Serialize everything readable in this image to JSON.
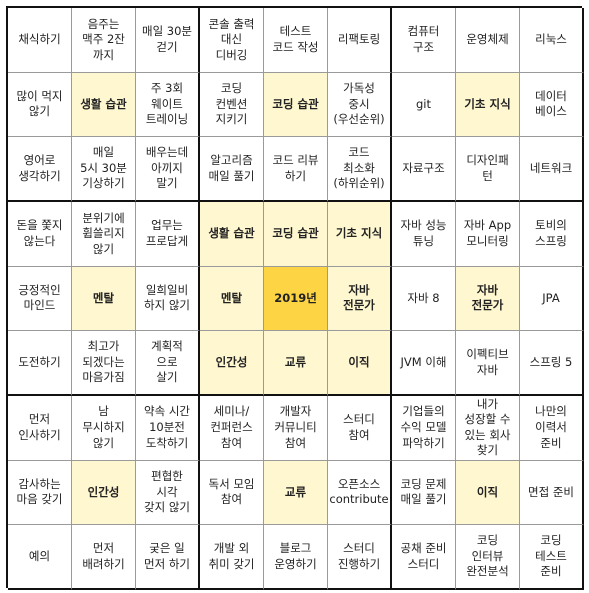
{
  "board": {
    "rows": [
      [
        "채식하기",
        "음주는\n맥주 2잔\n까지",
        "매일 30분\n걷기",
        "콘솔 출력\n대신\n디버깅",
        "테스트\n코드 작성",
        "리팩토링",
        "컴퓨터\n구조",
        "운영체제",
        "리눅스"
      ],
      [
        "많이 먹지\n않기",
        "생활 습관",
        "주 3회\n웨이트\n트레이닝",
        "코딩\n컨벤션\n지키기",
        "코딩 습관",
        "가독성\n중시\n(우선순위)",
        "git",
        "기초 지식",
        "데이터\n베이스"
      ],
      [
        "영어로\n생각하기",
        "매일\n5시 30분\n기상하기",
        "배우는데\n아끼지\n말기",
        "알고리즘\n매일 풀기",
        "코드 리뷰\n하기",
        "코드\n최소화\n(하위순위)",
        "자료구조",
        "디자인패\n턴",
        "네트워크"
      ],
      [
        "돈을 쫓지\n않는다",
        "분위기에\n휩쓸리지\n않기",
        "업무는\n프로답게",
        "생활 습관",
        "코딩 습관",
        "기초 지식",
        "자바 성능\n튜닝",
        "자바 App\n모니터링",
        "토비의\n스프링"
      ],
      [
        "긍정적인\n마인드",
        "멘탈",
        "일희일비\n하지 않기",
        "멘탈",
        "2019년",
        "자바\n전문가",
        "자바 8",
        "자바\n전문가",
        "JPA"
      ],
      [
        "도전하기",
        "최고가\n되겠다는\n마음가짐",
        "계획적\n으로\n살기",
        "인간성",
        "교류",
        "이직",
        "JVM 이해",
        "이펙티브\n자바",
        "스프링 5"
      ],
      [
        "먼저\n인사하기",
        "남\n무시하지\n않기",
        "약속 시간\n10분전\n도착하기",
        "세미나/\n컨퍼런스\n참여",
        "개발자\n커뮤니티\n참여",
        "스터디\n참여",
        "기업들의\n수익 모델\n파악하기",
        "내가\n성장할 수\n있는 회사\n찾기",
        "나만의\n이력서\n준비"
      ],
      [
        "감사하는\n마음 갖기",
        "인간성",
        "편협한\n시각\n갖지 않기",
        "독서 모임\n참여",
        "교류",
        "오픈소스\ncontribute",
        "코딩 문제\n매일 풀기",
        "이직",
        "면접 준비"
      ],
      [
        "예의",
        "먼저\n배려하기",
        "궂은 일\n먼저 하기",
        "개발 외\n취미 갖기",
        "블로그\n운영하기",
        "스터디\n진행하기",
        "공채 준비\n스터디",
        "코딩\n인터뷰\n완전분석",
        "코딩\n테스트\n준비"
      ]
    ],
    "highlight_color": "#fff7d0",
    "center_color": "#fcd444",
    "grid_color": "#9a9a9a",
    "block_border_color": "#111111"
  }
}
